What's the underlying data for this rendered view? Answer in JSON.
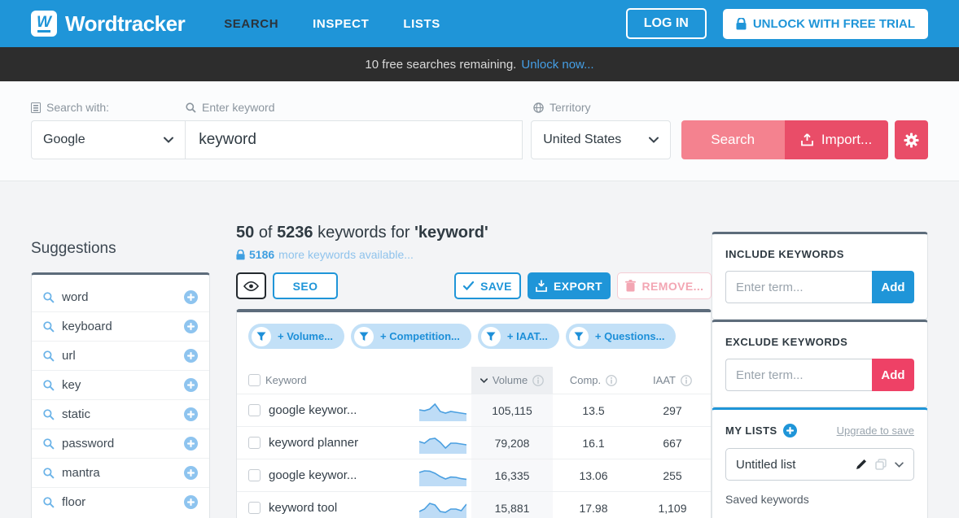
{
  "brand": {
    "name": "Wordtracker",
    "mark_letter": "W"
  },
  "nav": {
    "items": [
      "SEARCH",
      "INSPECT",
      "LISTS"
    ],
    "active": "SEARCH",
    "login_label": "LOG IN",
    "unlock_label": "UNLOCK WITH FREE TRIAL"
  },
  "promo": {
    "text": "10 free searches remaining.",
    "link": "Unlock now..."
  },
  "search_form": {
    "engine_label": "Search with:",
    "keyword_label": "Enter keyword",
    "territory_label": "Territory",
    "engine_value": "Google",
    "keyword_value": "keyword",
    "territory_value": "United States",
    "search_button": "Search",
    "import_button": "Import..."
  },
  "suggestions": {
    "title": "Suggestions",
    "items": [
      "word",
      "keyboard",
      "url",
      "key",
      "static",
      "password",
      "mantra",
      "floor"
    ]
  },
  "results": {
    "count": "50",
    "of_word": "of",
    "total": "5236",
    "middle": "keywords for",
    "query": "'keyword'",
    "more_bold": "5186",
    "more_rest": "more keywords available...",
    "seo_button": "SEO",
    "save_button": "SAVE",
    "export_button": "EXPORT",
    "remove_button": "REMOVE..."
  },
  "filters": [
    "+ Volume...",
    "+ Competition...",
    "+ IAAT...",
    "+ Questions..."
  ],
  "table": {
    "columns": {
      "keyword": "Keyword",
      "volume": "Volume",
      "comp": "Comp.",
      "iaat": "IAAT"
    },
    "rows": [
      {
        "keyword": "google keywor...",
        "volume": "105,115",
        "comp": "13.5",
        "iaat": "297",
        "trend": [
          5.5,
          5,
          6,
          9,
          4.5,
          3.5,
          4.5,
          4,
          3.5,
          3
        ]
      },
      {
        "keyword": "keyword planner",
        "volume": "79,208",
        "comp": "16.1",
        "iaat": "667",
        "trend": [
          6,
          5,
          7.5,
          8,
          5.5,
          2,
          5,
          5,
          4.5,
          4
        ]
      },
      {
        "keyword": "google keywor...",
        "volume": "16,335",
        "comp": "13.06",
        "iaat": "255",
        "trend": [
          7,
          8,
          7.8,
          6.5,
          4.5,
          3,
          4.2,
          4,
          3.2,
          2.8
        ]
      },
      {
        "keyword": "keyword tool",
        "volume": "15,881",
        "comp": "17.98",
        "iaat": "1,109",
        "trend": [
          3,
          4.5,
          8,
          7,
          3,
          2.5,
          4.5,
          4.5,
          3.5,
          7.5
        ]
      }
    ]
  },
  "sidebar": {
    "include": {
      "title": "INCLUDE KEYWORDS",
      "placeholder": "Enter term...",
      "add": "Add"
    },
    "exclude": {
      "title": "EXCLUDE KEYWORDS",
      "placeholder": "Enter term...",
      "add": "Add"
    },
    "my_lists": {
      "title": "MY LISTS",
      "upgrade": "Upgrade to save",
      "list_name": "Untitled list",
      "saved_label": "Saved keywords"
    }
  },
  "colors": {
    "brand_blue": "#1f95d8",
    "dark_bar": "#2d2d2d",
    "pink_light": "#f4828f",
    "red": "#e94d68",
    "exclude_red": "#ee4166",
    "chip_bg": "#c2e0f7",
    "slate_border": "#5d6c7b",
    "link_blue": "#459fe6"
  }
}
